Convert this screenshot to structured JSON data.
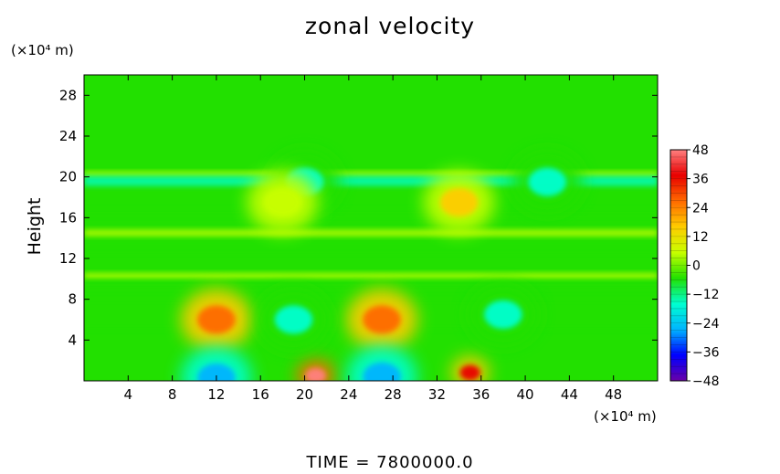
{
  "chart_data": {
    "type": "heatmap",
    "title": "zonal velocity",
    "ylabel": "Height",
    "y_unit": "(×10⁴ m)",
    "x_unit": "(×10⁴ m)",
    "xlim": [
      0,
      52
    ],
    "ylim": [
      0,
      30
    ],
    "x_ticks": [
      4,
      8,
      12,
      16,
      20,
      24,
      28,
      32,
      36,
      40,
      44,
      48
    ],
    "y_ticks": [
      4,
      8,
      12,
      16,
      20,
      24,
      28
    ],
    "colorbar": {
      "min": -48,
      "max": 48,
      "ticks": [
        48,
        36,
        24,
        12,
        0,
        -12,
        -24,
        -36,
        -48
      ],
      "tick_labels": [
        "48",
        "36",
        "24",
        "12",
        "0",
        "−12",
        "−24",
        "−36",
        "−48"
      ]
    },
    "features": [
      {
        "x": 12,
        "y": 6,
        "value": 24
      },
      {
        "x": 27,
        "y": 6,
        "value": 24
      },
      {
        "x": 21,
        "y": 0.5,
        "value": 45
      },
      {
        "x": 35,
        "y": 0.8,
        "value": 36
      },
      {
        "x": 19,
        "y": 6,
        "value": -18
      },
      {
        "x": 38,
        "y": 6.5,
        "value": -20
      },
      {
        "x": 12,
        "y": 0.3,
        "value": -30
      },
      {
        "x": 27,
        "y": 0.4,
        "value": -28
      },
      {
        "x": 20,
        "y": 19.5,
        "value": -12
      },
      {
        "x": 42,
        "y": 19.5,
        "value": -20
      },
      {
        "x": 34,
        "y": 17.5,
        "value": 14
      },
      {
        "x": 18,
        "y": 17.5,
        "value": 10
      }
    ],
    "colors": {
      "background_green": "#22e000",
      "colormap": [
        "#6a00a8",
        "#0000ff",
        "#00b4ff",
        "#00ffd0",
        "#22e000",
        "#c8ff00",
        "#ffcc00",
        "#ff6a00",
        "#e80000",
        "#ff8080"
      ]
    }
  },
  "footer": {
    "time_text": "TIME  =  7800000.0"
  }
}
